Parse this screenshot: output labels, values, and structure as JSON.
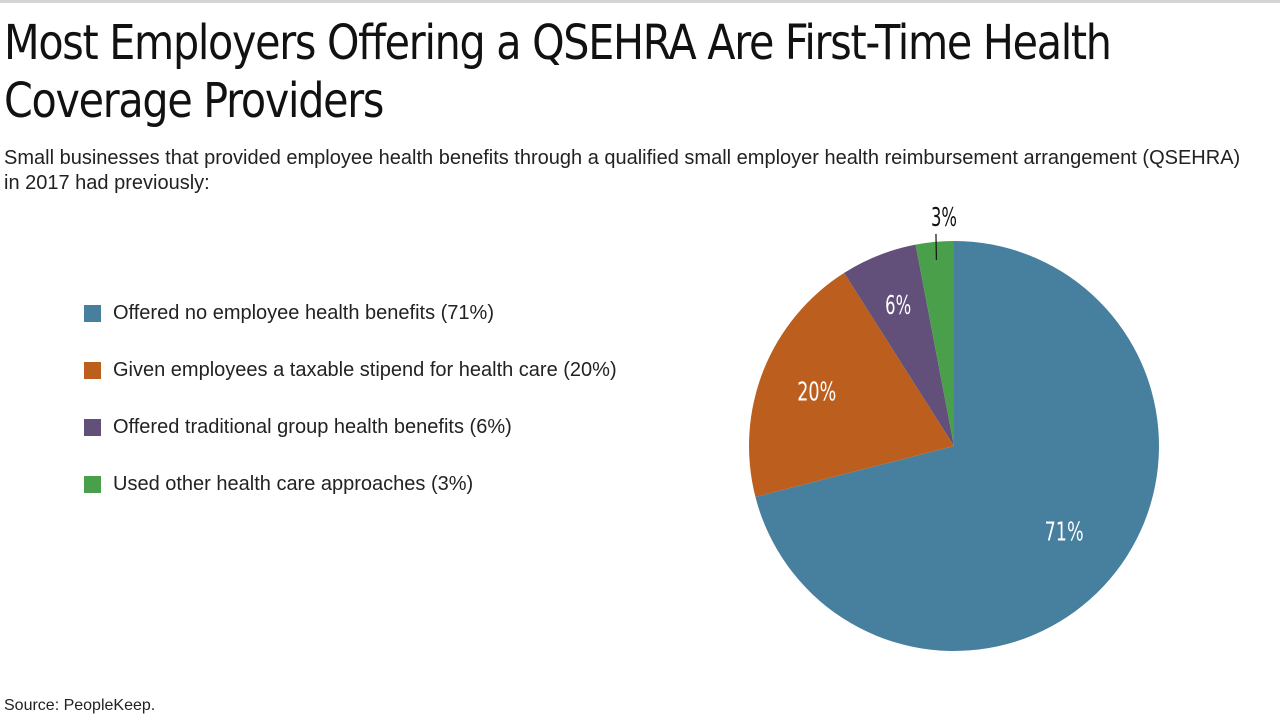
{
  "chart_data": {
    "type": "pie",
    "title": "Most Employers Offering a QSEHRA Are First-Time Health Coverage Providers",
    "title_lines": [
      "Most Employers Offering a QSEHRA Are First-Time Health",
      "Coverage Providers"
    ],
    "subtitle": "Small businesses that provided employee health benefits through a qualified small employer health reimbursement arrangement (QSEHRA) in 2017 had previously:",
    "categories": [
      "Offered no employee health benefits",
      "Given employees a taxable stipend for health care",
      "Offered traditional group health benefits",
      "Used other health care approaches"
    ],
    "values": [
      71,
      20,
      6,
      3
    ],
    "data_labels": [
      "71%",
      "20%",
      "6%",
      "3%"
    ],
    "legend_labels": [
      "Offered no employee health benefits (71%)",
      "Given employees a taxable stipend for health care (20%)",
      "Offered traditional group health benefits (6%)",
      "Used other health care approaches (3%)"
    ],
    "colors": [
      "#477f9f",
      "#bc5f1e",
      "#624f7a",
      "#4aa04a"
    ],
    "legend_position": "left",
    "start_angle": "12 o'clock, clockwise",
    "source": "Source: PeopleKeep."
  }
}
